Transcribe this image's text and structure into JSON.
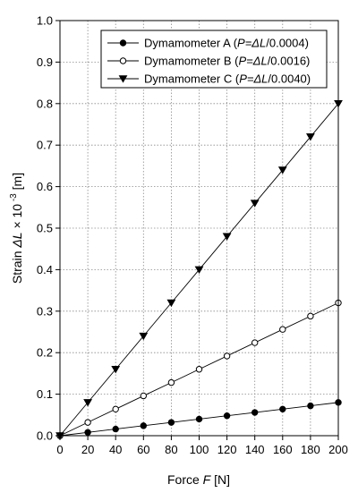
{
  "chart_data": {
    "type": "line",
    "xlabel": {
      "prefix": "Force ",
      "var": "F",
      "suffix": " [N]"
    },
    "ylabel": {
      "prefix": "Strain ",
      "var": "ΔL",
      "mid": "  × 10",
      "sup": " -3",
      "suffix": " [m]"
    },
    "xlim": [
      0,
      200
    ],
    "ylim": [
      0,
      1.0
    ],
    "x_ticks": [
      "0",
      "20",
      "40",
      "60",
      "80",
      "100",
      "120",
      "140",
      "160",
      "180",
      "200"
    ],
    "y_ticks": [
      "0.0",
      "0.1",
      "0.2",
      "0.3",
      "0.4",
      "0.5",
      "0.6",
      "0.7",
      "0.8",
      "0.9",
      "1.0"
    ],
    "grid": true,
    "legend_position": "top-center",
    "series": [
      {
        "name": "Dymamometer A (P=ΔL/0.0004)",
        "label_prefix": "Dymamometer A (",
        "label_formula": "P=ΔL",
        "label_suffix": "/0.0004)",
        "marker": "filled-circle",
        "x": [
          0,
          20,
          40,
          60,
          80,
          100,
          120,
          140,
          160,
          180,
          200
        ],
        "y": [
          0,
          0.008,
          0.016,
          0.024,
          0.032,
          0.04,
          0.048,
          0.056,
          0.064,
          0.072,
          0.08
        ]
      },
      {
        "name": "Dymamometer B (P=ΔL/0.0016)",
        "label_prefix": "Dymamometer B (",
        "label_formula": "P=ΔL",
        "label_suffix": "/0.0016)",
        "marker": "open-circle",
        "x": [
          0,
          20,
          40,
          60,
          80,
          100,
          120,
          140,
          160,
          180,
          200
        ],
        "y": [
          0,
          0.032,
          0.064,
          0.096,
          0.128,
          0.16,
          0.192,
          0.224,
          0.256,
          0.288,
          0.32
        ]
      },
      {
        "name": "Dymamometer C (P=ΔL/0.0040)",
        "label_prefix": "Dymamometer C (",
        "label_formula": "P=ΔL",
        "label_suffix": "/0.0040)",
        "marker": "filled-triangle-down",
        "x": [
          0,
          20,
          40,
          60,
          80,
          100,
          120,
          140,
          160,
          180,
          200
        ],
        "y": [
          0,
          0.08,
          0.16,
          0.24,
          0.32,
          0.4,
          0.48,
          0.56,
          0.64,
          0.72,
          0.8
        ]
      }
    ]
  }
}
